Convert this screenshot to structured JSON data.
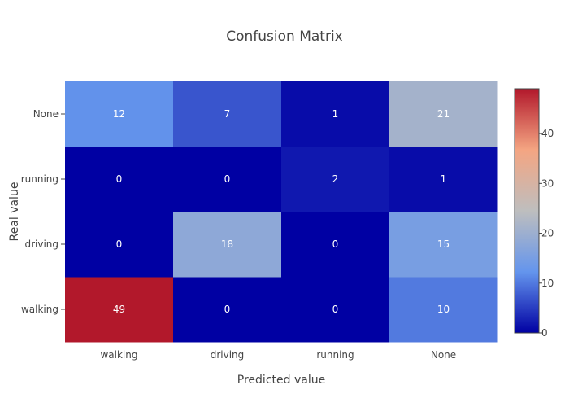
{
  "chart_data": {
    "type": "heatmap",
    "title": "Confusion Matrix",
    "xlabel": "Predicted value",
    "ylabel": "Real value",
    "x_categories": [
      "walking",
      "driving",
      "running",
      "None"
    ],
    "y_categories": [
      "walking",
      "driving",
      "running",
      "None"
    ],
    "z": [
      [
        49,
        0,
        0,
        10
      ],
      [
        0,
        18,
        0,
        15
      ],
      [
        0,
        0,
        2,
        1
      ],
      [
        12,
        7,
        1,
        21
      ]
    ],
    "colorscale": [
      "#0000a3",
      "#6495ed",
      "#bebebe",
      "#f4a582",
      "#b2182b"
    ],
    "colorbar": {
      "min": 0,
      "max": 49,
      "ticks": [
        0,
        10,
        20,
        30,
        40
      ]
    }
  }
}
